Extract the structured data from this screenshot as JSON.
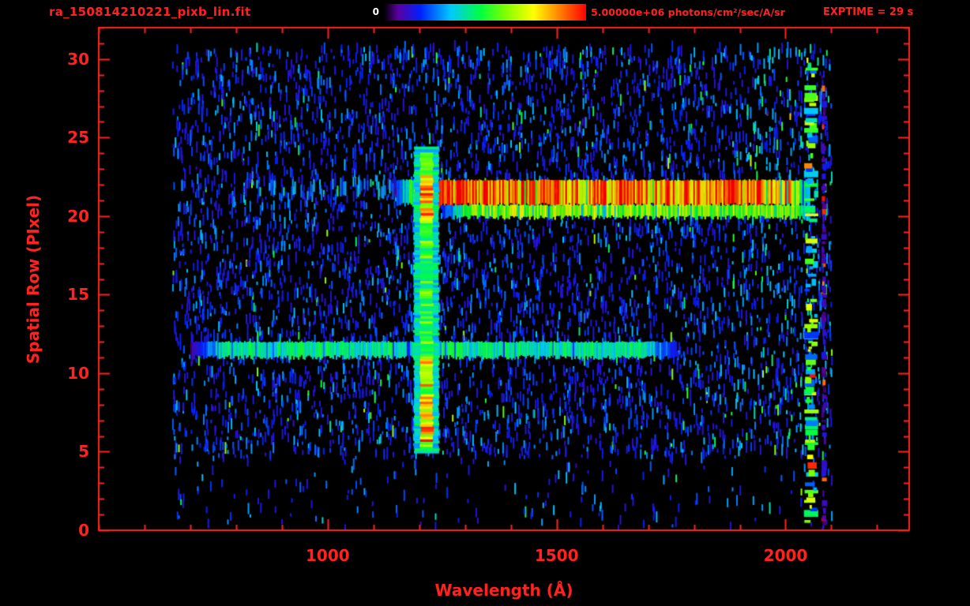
{
  "header": {
    "exptime_label": "EXPTIME = 29 s"
  },
  "chart_data": {
    "type": "heatmap",
    "title": "ra_150814210221_pixb_lin.fit",
    "xlabel": "Wavelength (Å)",
    "ylabel": "Spatial Row (PIxel)",
    "xlim": [
      500,
      2270
    ],
    "ylim": [
      0,
      32
    ],
    "x_ticks": [
      1000,
      1500,
      2000
    ],
    "x_minor_step": 100,
    "y_ticks": [
      0,
      5,
      10,
      15,
      20,
      25,
      30
    ],
    "y_minor_step": 1,
    "grid": false,
    "axis_color": "#ff2222",
    "background_color": "#000000",
    "colorbar": {
      "min_label": "0",
      "max_label": "5.00000e+06 photons/cm²/sec/A/sr",
      "min_value": 0,
      "max_value": 5000000
    },
    "colormap": [
      [
        0,
        "#000000"
      ],
      [
        0.07,
        "#5a00a0"
      ],
      [
        0.18,
        "#0020ff"
      ],
      [
        0.33,
        "#00c8ff"
      ],
      [
        0.48,
        "#00ff40"
      ],
      [
        0.6,
        "#80ff00"
      ],
      [
        0.74,
        "#ffff00"
      ],
      [
        0.87,
        "#ff8000"
      ],
      [
        1,
        "#ff0000"
      ]
    ],
    "data_extent": {
      "wavelength": [
        660,
        2100
      ],
      "rows": [
        0,
        30.5
      ]
    },
    "features": [
      {
        "name": "spectral-trace-main",
        "kind": "horizontal-band",
        "rows": [
          20.7,
          22.3
        ],
        "wavelength": [
          1150,
          2052
        ],
        "intensity": 0.9
      },
      {
        "name": "spectral-trace-lower",
        "kind": "horizontal-band",
        "rows": [
          19.9,
          20.7
        ],
        "wavelength": [
          1250,
          2062
        ],
        "intensity": 0.62
      },
      {
        "name": "trace-left-faint",
        "kind": "horizontal-band",
        "rows": [
          21.0,
          22.5
        ],
        "wavelength": [
          820,
          1150
        ],
        "intensity": 0.38,
        "sparse": true
      },
      {
        "name": "secondary-trace",
        "kind": "horizontal-band",
        "rows": [
          11.0,
          12.0
        ],
        "wavelength": [
          700,
          1760
        ],
        "intensity": 0.42
      },
      {
        "name": "airglow-halo",
        "kind": "vertical-band",
        "wavelength": [
          1188,
          1243
        ],
        "rows": [
          4.9,
          24.3
        ],
        "intensity": 0.4
      },
      {
        "name": "airglow-line-core",
        "kind": "vertical-band",
        "wavelength": [
          1202,
          1230
        ],
        "rows": [
          5.0,
          24.0
        ],
        "intensity": 0.55,
        "hotspots": [
          [
            5.5,
            8.6,
            1.5
          ],
          [
            9.0,
            10.8,
            1.4
          ],
          [
            19.5,
            22.5,
            1.5
          ]
        ]
      },
      {
        "name": "detector-edge-artifact",
        "kind": "vertical-band",
        "wavelength": [
          2040,
          2072
        ],
        "rows": [
          0.5,
          30.0
        ],
        "intensity": 0.55,
        "sparse": true
      },
      {
        "name": "far-edge-glow",
        "kind": "vertical-band",
        "wavelength": [
          2078,
          2090
        ],
        "rows": [
          0,
          30
        ],
        "intensity": 0.12,
        "sparse": true
      }
    ],
    "noise": {
      "speckle_count": 7000,
      "seed": 7
    }
  }
}
